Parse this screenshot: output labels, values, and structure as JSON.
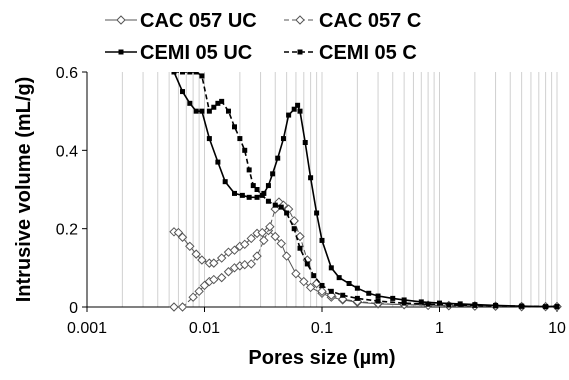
{
  "chart_data": {
    "type": "line",
    "xlabel": "Pores size (µm)",
    "ylabel": "Intrusive volume (mL/g)",
    "x_scale": "log",
    "xlim": [
      0.001,
      10
    ],
    "ylim": [
      0,
      0.6
    ],
    "x_ticks": [
      "0.001",
      "0.01",
      "0.1",
      "1",
      "10"
    ],
    "y_ticks": [
      "0",
      "0.2",
      "0.4",
      "0.6"
    ],
    "grid": "vertical-minor",
    "legend_position": "top",
    "series": [
      {
        "name": "CAC 057 UC",
        "marker": "open-diamond",
        "line": "solid",
        "points": [
          [
            0.0055,
            0.192
          ],
          [
            0.006,
            0.19
          ],
          [
            0.0065,
            0.178
          ],
          [
            0.0075,
            0.155
          ],
          [
            0.0085,
            0.135
          ],
          [
            0.0095,
            0.12
          ],
          [
            0.011,
            0.112
          ],
          [
            0.012,
            0.112
          ],
          [
            0.014,
            0.125
          ],
          [
            0.016,
            0.14
          ],
          [
            0.018,
            0.145
          ],
          [
            0.02,
            0.155
          ],
          [
            0.022,
            0.16
          ],
          [
            0.025,
            0.175
          ],
          [
            0.028,
            0.188
          ],
          [
            0.031,
            0.19
          ],
          [
            0.035,
            0.195
          ],
          [
            0.04,
            0.18
          ],
          [
            0.045,
            0.162
          ],
          [
            0.05,
            0.13
          ],
          [
            0.06,
            0.085
          ],
          [
            0.07,
            0.065
          ],
          [
            0.08,
            0.05
          ],
          [
            0.1,
            0.035
          ],
          [
            0.12,
            0.025
          ],
          [
            0.15,
            0.018
          ],
          [
            0.2,
            0.012
          ],
          [
            0.3,
            0.008
          ],
          [
            0.5,
            0.006
          ],
          [
            0.8,
            0.005
          ],
          [
            1.2,
            0.004
          ],
          [
            2,
            0.003
          ],
          [
            3,
            0.002
          ],
          [
            5,
            0.001
          ],
          [
            8,
            0.001
          ],
          [
            10,
            0.001
          ]
        ]
      },
      {
        "name": "CAC 057 C",
        "marker": "open-diamond",
        "line": "dashed",
        "points": [
          [
            0.0055,
            0.0
          ],
          [
            0.0065,
            0.0
          ],
          [
            0.008,
            0.025
          ],
          [
            0.009,
            0.04
          ],
          [
            0.01,
            0.055
          ],
          [
            0.011,
            0.065
          ],
          [
            0.012,
            0.07
          ],
          [
            0.014,
            0.075
          ],
          [
            0.016,
            0.09
          ],
          [
            0.018,
            0.1
          ],
          [
            0.02,
            0.105
          ],
          [
            0.022,
            0.108
          ],
          [
            0.025,
            0.11
          ],
          [
            0.028,
            0.13
          ],
          [
            0.032,
            0.17
          ],
          [
            0.036,
            0.205
          ],
          [
            0.04,
            0.25
          ],
          [
            0.043,
            0.268
          ],
          [
            0.047,
            0.26
          ],
          [
            0.052,
            0.25
          ],
          [
            0.058,
            0.22
          ],
          [
            0.065,
            0.18
          ],
          [
            0.075,
            0.12
          ],
          [
            0.09,
            0.06
          ],
          [
            0.1,
            0.04
          ],
          [
            0.12,
            0.03
          ],
          [
            0.15,
            0.02
          ],
          [
            0.2,
            0.014
          ],
          [
            0.3,
            0.009
          ],
          [
            0.5,
            0.006
          ],
          [
            0.8,
            0.004
          ],
          [
            1.2,
            0.003
          ],
          [
            2,
            0.002
          ],
          [
            3,
            0.002
          ],
          [
            5,
            0.001
          ],
          [
            10,
            0.001
          ]
        ]
      },
      {
        "name": "CEMI 05 UC",
        "marker": "filled-square",
        "line": "solid",
        "points": [
          [
            0.0055,
            0.6
          ],
          [
            0.0065,
            0.55
          ],
          [
            0.0075,
            0.52
          ],
          [
            0.0085,
            0.5
          ],
          [
            0.0095,
            0.5
          ],
          [
            0.011,
            0.43
          ],
          [
            0.013,
            0.37
          ],
          [
            0.015,
            0.32
          ],
          [
            0.018,
            0.29
          ],
          [
            0.021,
            0.285
          ],
          [
            0.024,
            0.28
          ],
          [
            0.028,
            0.28
          ],
          [
            0.032,
            0.29
          ],
          [
            0.035,
            0.31
          ],
          [
            0.038,
            0.34
          ],
          [
            0.042,
            0.38
          ],
          [
            0.047,
            0.43
          ],
          [
            0.052,
            0.49
          ],
          [
            0.058,
            0.505
          ],
          [
            0.062,
            0.515
          ],
          [
            0.065,
            0.5
          ],
          [
            0.072,
            0.42
          ],
          [
            0.08,
            0.33
          ],
          [
            0.09,
            0.24
          ],
          [
            0.1,
            0.17
          ],
          [
            0.12,
            0.1
          ],
          [
            0.14,
            0.075
          ],
          [
            0.17,
            0.06
          ],
          [
            0.2,
            0.048
          ],
          [
            0.25,
            0.035
          ],
          [
            0.3,
            0.028
          ],
          [
            0.4,
            0.022
          ],
          [
            0.5,
            0.018
          ],
          [
            0.7,
            0.013
          ],
          [
            1,
            0.01
          ],
          [
            1.5,
            0.008
          ],
          [
            2,
            0.006
          ],
          [
            3,
            0.004
          ],
          [
            5,
            0.002
          ],
          [
            8,
            0.001
          ],
          [
            10,
            0.001
          ]
        ]
      },
      {
        "name": "CEMI 05 C",
        "marker": "filled-square",
        "line": "dashed",
        "points": [
          [
            0.0055,
            0.6
          ],
          [
            0.0065,
            0.6
          ],
          [
            0.0075,
            0.6
          ],
          [
            0.0085,
            0.6
          ],
          [
            0.0095,
            0.59
          ],
          [
            0.011,
            0.5
          ],
          [
            0.012,
            0.51
          ],
          [
            0.013,
            0.52
          ],
          [
            0.014,
            0.525
          ],
          [
            0.016,
            0.5
          ],
          [
            0.018,
            0.46
          ],
          [
            0.02,
            0.43
          ],
          [
            0.022,
            0.4
          ],
          [
            0.024,
            0.35
          ],
          [
            0.026,
            0.31
          ],
          [
            0.028,
            0.3
          ],
          [
            0.031,
            0.285
          ],
          [
            0.035,
            0.27
          ],
          [
            0.04,
            0.26
          ],
          [
            0.045,
            0.255
          ],
          [
            0.05,
            0.24
          ],
          [
            0.058,
            0.2
          ],
          [
            0.065,
            0.15
          ],
          [
            0.075,
            0.11
          ],
          [
            0.085,
            0.08
          ],
          [
            0.1,
            0.055
          ],
          [
            0.12,
            0.04
          ],
          [
            0.15,
            0.03
          ],
          [
            0.2,
            0.022
          ],
          [
            0.3,
            0.015
          ],
          [
            0.5,
            0.01
          ],
          [
            0.8,
            0.007
          ],
          [
            1.2,
            0.005
          ],
          [
            2,
            0.004
          ],
          [
            3,
            0.003
          ],
          [
            5,
            0.002
          ],
          [
            10,
            0.001
          ]
        ]
      }
    ]
  }
}
